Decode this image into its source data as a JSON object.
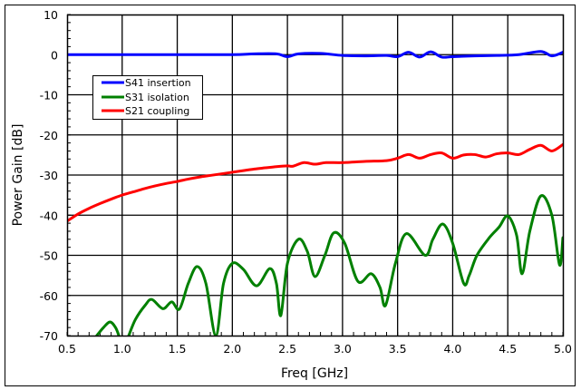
{
  "chart_data": {
    "type": "line",
    "title": "",
    "xlabel": "Freq [GHz]",
    "ylabel": "Power Gain [dB]",
    "xlim": [
      0.5,
      5.0
    ],
    "ylim": [
      -70,
      10
    ],
    "x_ticks": [
      "0.5",
      "1.0",
      "1.5",
      "2.0",
      "2.5",
      "3.0",
      "3.5",
      "4.0",
      "4.5",
      "5.0"
    ],
    "y_ticks": [
      "10",
      "0",
      "-10",
      "-20",
      "-30",
      "-40",
      "-50",
      "-60",
      "-70"
    ],
    "grid": true,
    "legend_position": "upper-left (inset)",
    "series": [
      {
        "name": "S41 insertion",
        "color": "#0000ff",
        "x": [
          0.5,
          1.0,
          1.5,
          2.0,
          2.2,
          2.4,
          2.5,
          2.6,
          2.8,
          3.0,
          3.2,
          3.4,
          3.5,
          3.6,
          3.7,
          3.8,
          3.9,
          4.0,
          4.2,
          4.4,
          4.6,
          4.8,
          4.9,
          5.0
        ],
        "values": [
          0.0,
          0.0,
          0.0,
          0.0,
          0.2,
          0.2,
          -0.5,
          0.2,
          0.3,
          -0.2,
          -0.3,
          -0.2,
          -0.5,
          0.6,
          -0.6,
          0.7,
          -0.6,
          -0.5,
          -0.3,
          -0.2,
          0.0,
          0.8,
          -0.3,
          0.6
        ]
      },
      {
        "name": "S31 isolation",
        "color": "#008000",
        "x": [
          0.77,
          0.83,
          0.89,
          0.94,
          0.97,
          null,
          1.06,
          1.12,
          1.21,
          1.27,
          1.37,
          1.45,
          1.52,
          1.6,
          1.68,
          1.76,
          1.85,
          1.92,
          2.0,
          2.1,
          2.22,
          2.34,
          2.4,
          2.44,
          2.5,
          2.6,
          2.68,
          2.75,
          2.84,
          2.92,
          3.02,
          3.14,
          3.26,
          3.34,
          3.39,
          3.48,
          3.58,
          3.75,
          3.82,
          3.91,
          4.0,
          4.1,
          4.15,
          4.22,
          4.33,
          4.42,
          4.5,
          4.58,
          4.63,
          4.7,
          4.8,
          4.9,
          4.97,
          5.0
        ],
        "values": [
          -70.0,
          -68.0,
          -66.6,
          -68.0,
          -70.0,
          null,
          -70.0,
          -66.0,
          -62.4,
          -61.0,
          -63.3,
          -61.6,
          -63.4,
          -57.0,
          -52.8,
          -57.0,
          -70.0,
          -57.0,
          -52.0,
          -53.5,
          -57.6,
          -53.3,
          -57.0,
          -65.0,
          -52.0,
          -46.0,
          -49.0,
          -55.3,
          -50.0,
          -44.4,
          -47.0,
          -56.5,
          -54.6,
          -58.0,
          -62.5,
          -52.0,
          -44.6,
          -50.0,
          -46.0,
          -42.2,
          -47.0,
          -57.0,
          -55.0,
          -50.0,
          -45.7,
          -43.0,
          -40.2,
          -45.0,
          -54.6,
          -44.0,
          -35.2,
          -40.0,
          -52.4,
          -45.6
        ]
      },
      {
        "name": "S21 coupling",
        "color": "#ff0000",
        "x": [
          0.5,
          0.6,
          0.7,
          0.8,
          0.9,
          1.0,
          1.1,
          1.2,
          1.3,
          1.4,
          1.5,
          1.6,
          1.7,
          1.8,
          1.9,
          2.0,
          2.1,
          2.2,
          2.3,
          2.4,
          2.5,
          2.55,
          2.65,
          2.75,
          2.85,
          3.0,
          3.2,
          3.4,
          3.5,
          3.6,
          3.7,
          3.8,
          3.9,
          4.0,
          4.1,
          4.2,
          4.3,
          4.4,
          4.5,
          4.6,
          4.7,
          4.8,
          4.9,
          5.0
        ],
        "values": [
          -41.5,
          -39.7,
          -38.3,
          -37.1,
          -36.0,
          -35.0,
          -34.2,
          -33.4,
          -32.7,
          -32.1,
          -31.6,
          -31.0,
          -30.5,
          -30.1,
          -29.7,
          -29.3,
          -28.9,
          -28.5,
          -28.2,
          -27.9,
          -27.7,
          -27.8,
          -26.9,
          -27.3,
          -26.9,
          -26.9,
          -26.6,
          -26.4,
          -25.8,
          -24.9,
          -25.8,
          -24.9,
          -24.5,
          -25.8,
          -25.0,
          -24.9,
          -25.5,
          -24.7,
          -24.5,
          -24.9,
          -23.6,
          -22.6,
          -24.0,
          -22.4
        ]
      }
    ]
  },
  "legend": {
    "items": [
      {
        "label": "S41 insertion",
        "color": "#0000ff"
      },
      {
        "label": "S31 isolation",
        "color": "#008000"
      },
      {
        "label": "S21 coupling",
        "color": "#ff0000"
      }
    ]
  },
  "axes": {
    "xlabel": "Freq [GHz]",
    "ylabel": "Power Gain [dB]"
  }
}
